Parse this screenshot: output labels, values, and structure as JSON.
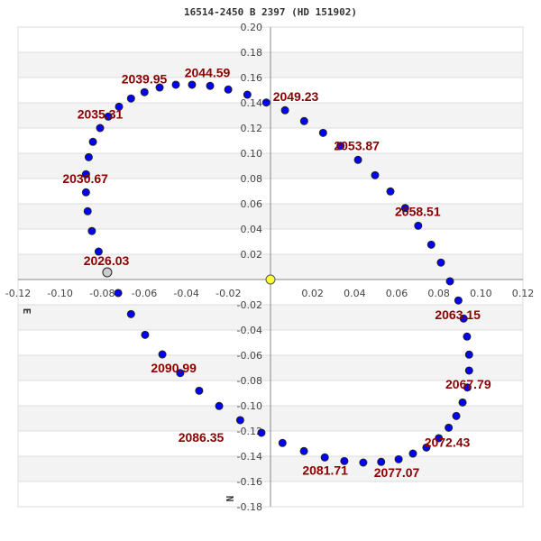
{
  "chart_data": {
    "type": "scatter",
    "title": "16514-2450 B  2397 (HD 151902)",
    "xlim": [
      -0.12,
      0.12
    ],
    "ylim": [
      -0.18,
      0.2
    ],
    "x_ticks": [
      "-0.12",
      "-0.10",
      "-0.08",
      "-0.06",
      "-0.04",
      "-0.02",
      "0.02",
      "0.04",
      "0.06",
      "0.08",
      "0.10",
      "0.12"
    ],
    "y_ticks": [
      "0.20",
      "0.18",
      "0.16",
      "0.14",
      "0.12",
      "0.10",
      "0.08",
      "0.06",
      "0.04",
      "0.02",
      "-0.02",
      "-0.04",
      "-0.06",
      "-0.08",
      "-0.10",
      "-0.12",
      "-0.14",
      "-0.16",
      "-0.18"
    ],
    "grid": true,
    "direction_labels": {
      "east": "E",
      "north": "N"
    },
    "colors": {
      "orbit_points": "#0000ff",
      "primary": "#ffff33",
      "observed": "#cccccc",
      "labels": "#8b0000",
      "band": "#f3f3f3"
    },
    "primary": [
      0,
      0
    ],
    "observed_point": [
      -0.0776,
      0.0057
    ],
    "points": [
      [
        -0.0817,
        0.0221
      ],
      [
        -0.0849,
        0.0384
      ],
      [
        -0.0869,
        0.0541
      ],
      [
        -0.0877,
        0.0691
      ],
      [
        -0.0877,
        0.0834
      ],
      [
        -0.0864,
        0.0969
      ],
      [
        -0.0844,
        0.1091
      ],
      [
        -0.081,
        0.12
      ],
      [
        -0.0771,
        0.1291
      ],
      [
        -0.072,
        0.1369
      ],
      [
        -0.0663,
        0.1434
      ],
      [
        -0.0599,
        0.1484
      ],
      [
        -0.0527,
        0.1521
      ],
      [
        -0.045,
        0.1543
      ],
      [
        -0.0373,
        0.1543
      ],
      [
        -0.0287,
        0.1534
      ],
      [
        -0.0201,
        0.1505
      ],
      [
        -0.011,
        0.1464
      ],
      [
        -0.002,
        0.1402
      ],
      [
        0.0069,
        0.1341
      ],
      [
        0.016,
        0.1255
      ],
      [
        0.025,
        0.1162
      ],
      [
        0.0333,
        0.1059
      ],
      [
        0.0416,
        0.0948
      ],
      [
        0.0497,
        0.0826
      ],
      [
        0.057,
        0.0698
      ],
      [
        0.064,
        0.0566
      ],
      [
        0.0702,
        0.0426
      ],
      [
        0.0764,
        0.0276
      ],
      [
        0.081,
        0.0134
      ],
      [
        0.0853,
        -0.0014
      ],
      [
        0.0893,
        -0.0166
      ],
      [
        0.0918,
        -0.0309
      ],
      [
        0.0934,
        -0.0452
      ],
      [
        0.0944,
        -0.0595
      ],
      [
        0.0944,
        -0.0721
      ],
      [
        0.0936,
        -0.0855
      ],
      [
        0.0913,
        -0.0974
      ],
      [
        0.0883,
        -0.1081
      ],
      [
        0.0847,
        -0.1174
      ],
      [
        0.08,
        -0.1257
      ],
      [
        0.0741,
        -0.1331
      ],
      [
        0.0677,
        -0.1379
      ],
      [
        0.0609,
        -0.1424
      ],
      [
        0.0526,
        -0.1445
      ],
      [
        0.0441,
        -0.145
      ],
      [
        0.0351,
        -0.1438
      ],
      [
        0.0258,
        -0.1409
      ],
      [
        0.0159,
        -0.1359
      ],
      [
        0.0057,
        -0.1295
      ],
      [
        -0.0043,
        -0.1214
      ],
      [
        -0.0144,
        -0.1114
      ],
      [
        -0.0244,
        -0.1002
      ],
      [
        -0.0339,
        -0.0881
      ],
      [
        -0.0429,
        -0.0741
      ],
      [
        -0.0514,
        -0.0593
      ],
      [
        -0.0596,
        -0.0438
      ],
      [
        -0.0663,
        -0.0274
      ],
      [
        -0.0724,
        -0.0107
      ]
    ],
    "annotations": [
      {
        "text": "2026.03",
        "x": -0.078,
        "y": 0.015
      },
      {
        "text": "2030.67",
        "x": -0.088,
        "y": 0.08
      },
      {
        "text": "2035.31",
        "x": -0.081,
        "y": 0.131
      },
      {
        "text": "2039.95",
        "x": -0.06,
        "y": 0.159
      },
      {
        "text": "2044.59",
        "x": -0.03,
        "y": 0.164
      },
      {
        "text": "2049.23",
        "x": 0.006,
        "y": 0.145
      },
      {
        "text": "2053.87",
        "x": 0.041,
        "y": 0.106
      },
      {
        "text": "2058.51",
        "x": 0.07,
        "y": 0.054
      },
      {
        "text": "2063.15",
        "x": 0.089,
        "y": -0.028
      },
      {
        "text": "2067.79",
        "x": 0.094,
        "y": -0.083
      },
      {
        "text": "2072.43",
        "x": 0.084,
        "y": -0.129
      },
      {
        "text": "2077.07",
        "x": 0.06,
        "y": -0.153
      },
      {
        "text": "2081.71",
        "x": 0.026,
        "y": -0.151
      },
      {
        "text": "2086.35",
        "x": -0.015,
        "y": -0.122
      },
      {
        "text": "2090.99",
        "x": -0.046,
        "y": -0.07
      }
    ]
  }
}
